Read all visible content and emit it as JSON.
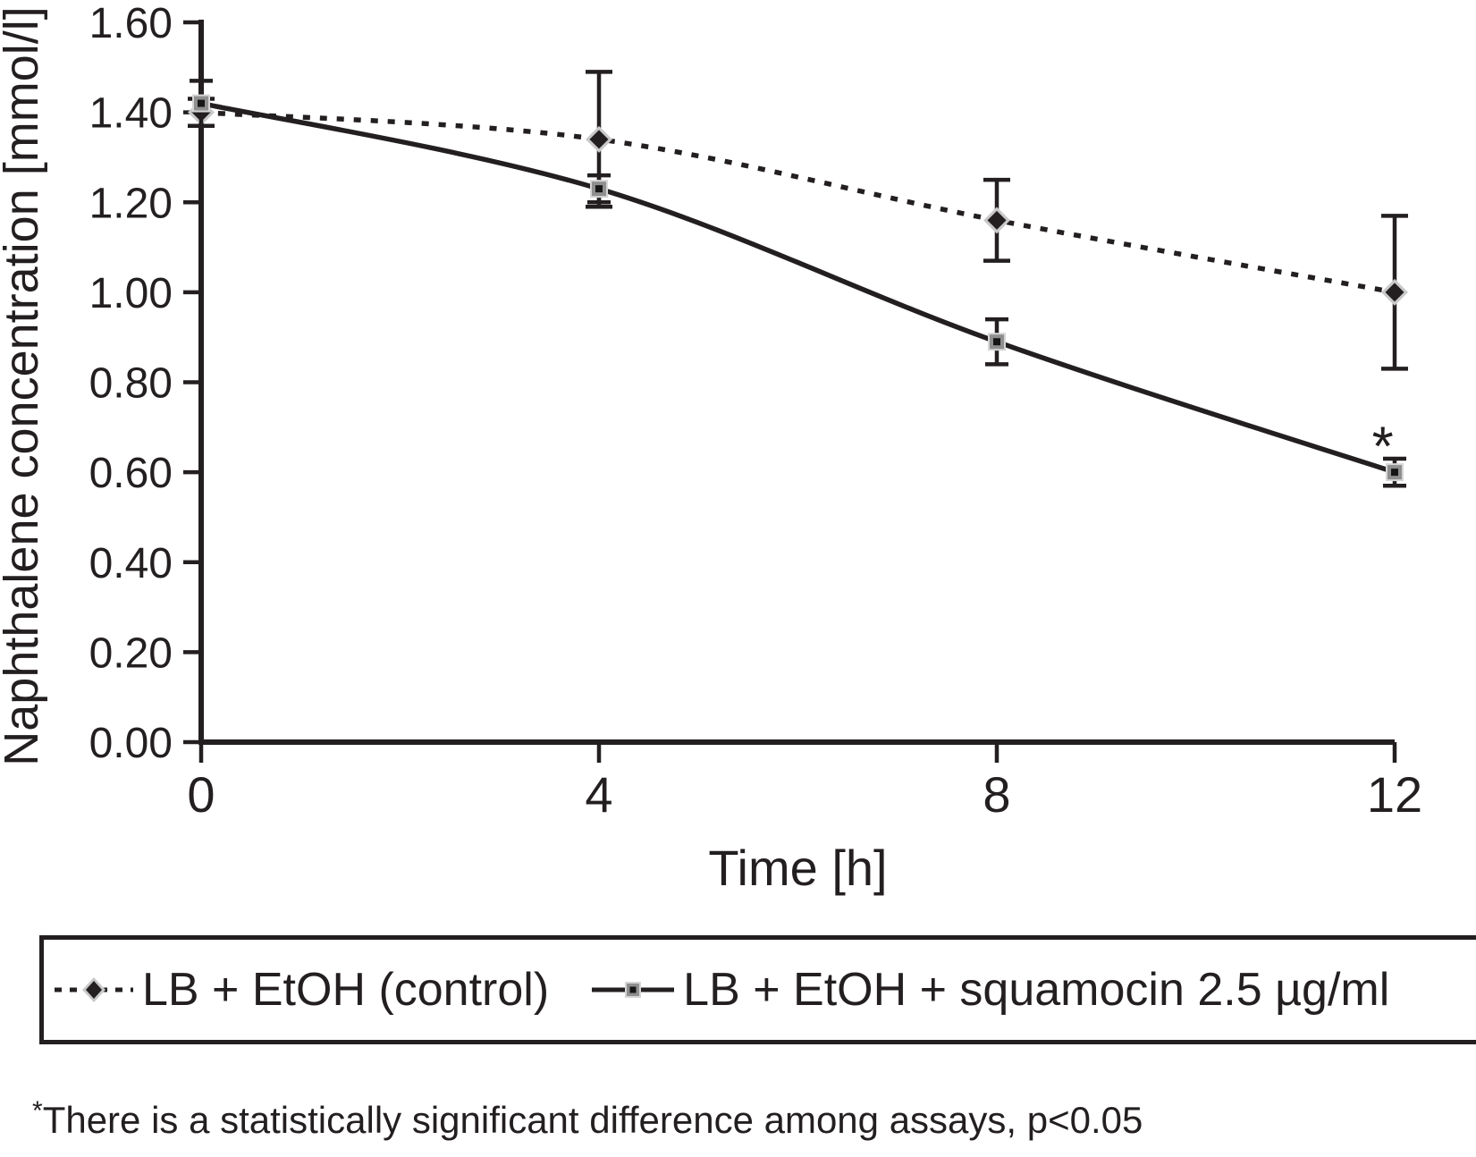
{
  "legend": {
    "entries": [
      {
        "label": "LB + EtOH (control)",
        "marker": "diamond-dotted"
      },
      {
        "label": "LB + EtOH + squamocin 2.5 µg/ml",
        "marker": "square-solid"
      }
    ]
  },
  "footnote": {
    "symbol": "*",
    "text": "There is a statistically significant difference among assays, p<0.05"
  },
  "chart_data": {
    "type": "line",
    "title": "",
    "xlabel": "Time [h]",
    "ylabel": "Naphthalene concentration [mmol/l]",
    "x": [
      0,
      4,
      8,
      12
    ],
    "xlim": [
      0,
      12
    ],
    "ylim": [
      0,
      1.6
    ],
    "x_ticks": [
      "0",
      "4",
      "8",
      "12"
    ],
    "y_ticks": [
      "0.00",
      "0.20",
      "0.40",
      "0.60",
      "0.80",
      "1.00",
      "1.20",
      "1.40",
      "1.60"
    ],
    "grid": false,
    "legend_position": "bottom",
    "series": [
      {
        "name": "LB + EtOH (control)",
        "style": "dotted",
        "marker": "diamond",
        "values": [
          1.4,
          1.34,
          1.16,
          1.0
        ],
        "errors": [
          0.03,
          0.15,
          0.09,
          0.17
        ]
      },
      {
        "name": "LB + EtOH + squamocin 2.5 µg/ml",
        "style": "solid",
        "marker": "square",
        "values": [
          1.42,
          1.23,
          0.89,
          0.6
        ],
        "errors": [
          0.05,
          0.03,
          0.05,
          0.03
        ]
      }
    ],
    "annotations": [
      {
        "text": "*",
        "x": 11.88,
        "y": 0.615,
        "meaning": "statistically significant, p<0.05"
      }
    ],
    "colors": {
      "ink": "#231f20",
      "diamond_fill": "#231f20",
      "diamond_halo": "#c9c9c9",
      "square_fill": "#8f8f8f",
      "square_border": "#d6d6d6",
      "square_center": "#161616"
    }
  }
}
